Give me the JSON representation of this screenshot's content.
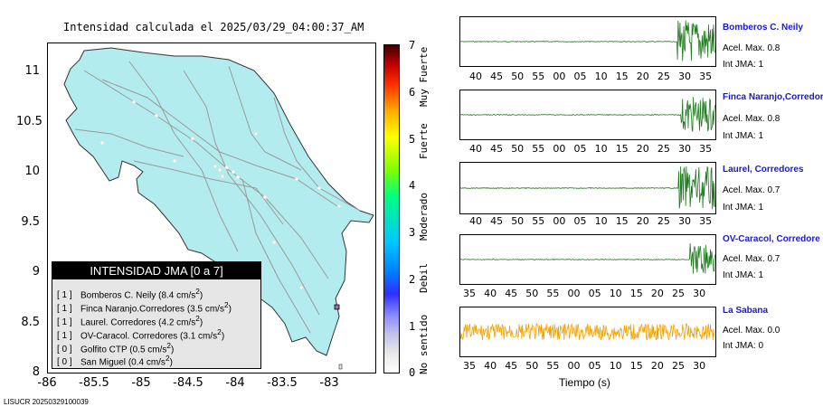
{
  "map": {
    "title": "Intensidad calculada el 2025/03/29_04:00:37_AM",
    "y_ticks": [
      "11",
      "10.5",
      "10",
      "9.5",
      "9",
      "8.5",
      "8"
    ],
    "x_ticks": [
      "-86",
      "-85.5",
      "-85",
      "-84.5",
      "-84",
      "-83.5",
      "-83"
    ],
    "land_color": "#b3ecee",
    "road_color": "#9a9a9a"
  },
  "colorbar": {
    "numbers": [
      "7",
      "6",
      "5",
      "4",
      "3",
      "2",
      "1",
      "0"
    ],
    "words": [
      "Muy Fuerte",
      "Fuerte",
      "Moderado",
      "Debil",
      "No sentido"
    ]
  },
  "legend": {
    "header": "INTENSIDAD JMA [0 a 7]",
    "rows": [
      {
        "level": "[ 1 ]",
        "name": "Bomberos C. Neily",
        "value": "(8.4 cm/s",
        "exp": "2",
        "close": ")"
      },
      {
        "level": "[ 1 ]",
        "name": "Finca Naranjo.Corredores",
        "value": "(3.5 cm/s",
        "exp": "2",
        "close": ")"
      },
      {
        "level": "[ 1 ]",
        "name": "Laurel. Corredores",
        "value": "(4.2 cm/s",
        "exp": "2",
        "close": ")"
      },
      {
        "level": "[ 1 ]",
        "name": "OV-Caracol. Corredores",
        "value": "(3.1 cm/s",
        "exp": "2",
        "close": ")"
      },
      {
        "level": "[ 0 ]",
        "name": "Golfito CTP",
        "value": "(0.5 cm/s",
        "exp": "2",
        "close": ")"
      },
      {
        "level": "[ 0 ]",
        "name": "San Miguel",
        "value": "(0.4 cm/s",
        "exp": "2",
        "close": ")"
      }
    ]
  },
  "footer_id": "LISUCR 20250329100039",
  "traces": [
    {
      "name": "Bomberos C. Neily",
      "acel": "Acel. Max. 0.8",
      "jma": "Int JMA: 1",
      "color": "#1f7a1f",
      "ticks": [
        "40",
        "45",
        "50",
        "55",
        "00",
        "05",
        "10",
        "15",
        "20",
        "25",
        "30",
        "35"
      ]
    },
    {
      "name": "Finca Naranjo,Corredor",
      "acel": "Acel. Max. 0.8",
      "jma": "Int JMA: 1",
      "color": "#1f7a1f",
      "ticks": [
        "40",
        "45",
        "50",
        "55",
        "00",
        "05",
        "10",
        "15",
        "20",
        "25",
        "30",
        "35"
      ]
    },
    {
      "name": "Laurel, Corredores",
      "acel": "Acel. Max. 0.7",
      "jma": "Int JMA: 1",
      "color": "#1f7a1f",
      "ticks": [
        "40",
        "45",
        "50",
        "55",
        "00",
        "05",
        "10",
        "15",
        "20",
        "25",
        "30",
        "35"
      ]
    },
    {
      "name": "OV-Caracol, Corredore",
      "acel": "Acel. Max. 0.7",
      "jma": "Int JMA: 1",
      "color": "#1f7a1f",
      "ticks": [
        "35",
        "40",
        "45",
        "50",
        "55",
        "00",
        "05",
        "10",
        "15",
        "20",
        "25",
        "30"
      ]
    },
    {
      "name": "La Sabana",
      "acel": "Acel. Max. 0.0",
      "jma": "Int JMA: 0",
      "color": "#f0a000",
      "ticks": [
        "35",
        "40",
        "45",
        "50",
        "55",
        "00",
        "05",
        "10",
        "15",
        "20",
        "25",
        "30"
      ]
    }
  ],
  "x_axis_label": "Tiempo (s)"
}
